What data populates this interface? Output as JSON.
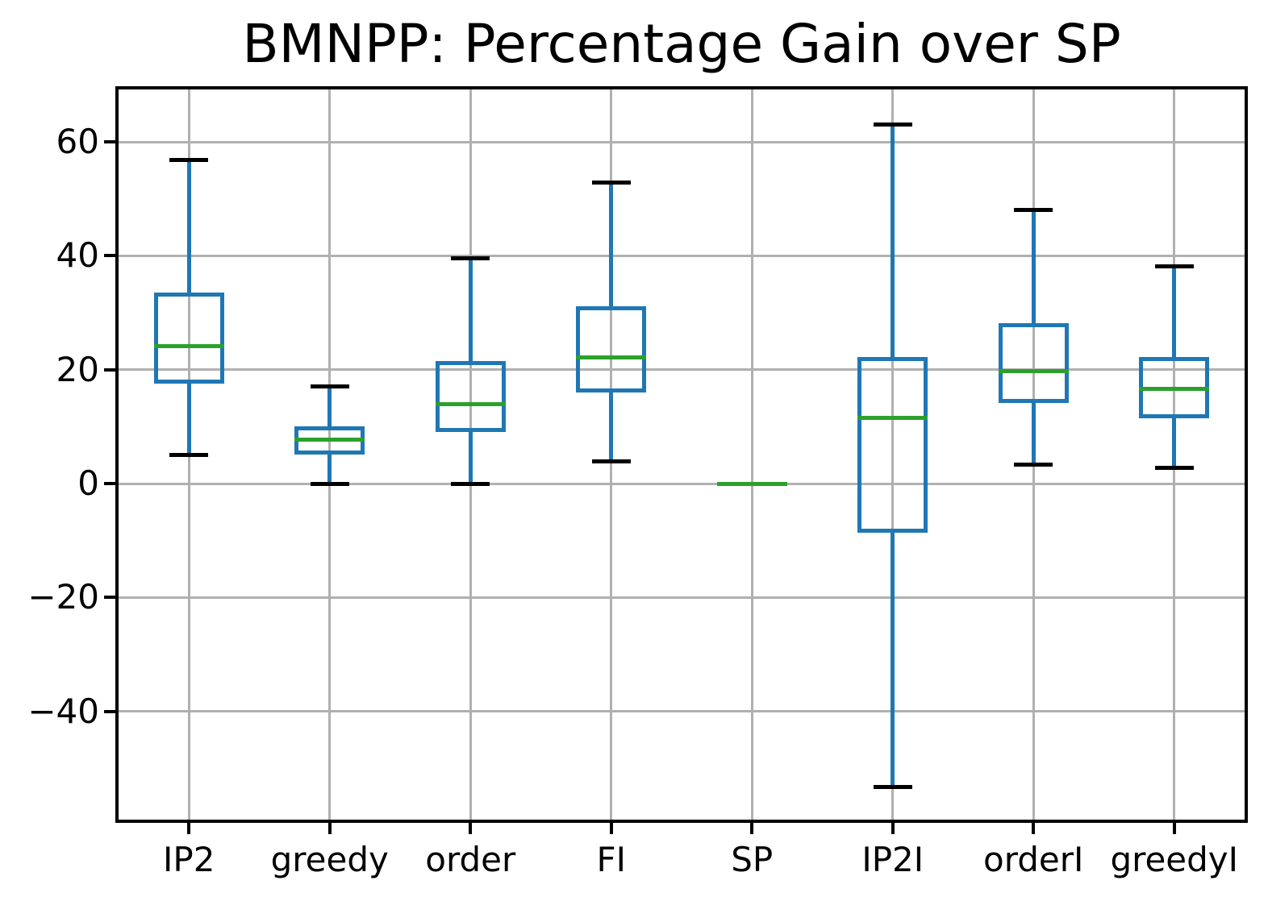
{
  "chart_data": {
    "type": "box",
    "title": "BMNPP: Percentage Gain over SP",
    "categories": [
      "IP2",
      "greedy",
      "order",
      "FI",
      "SP",
      "IP2I",
      "orderI",
      "greedyI"
    ],
    "series": [
      {
        "name": "IP2",
        "whislo": 5.0,
        "q1": 17.5,
        "med": 24.2,
        "q3": 33.5,
        "whishi": 56.8
      },
      {
        "name": "greedy",
        "whislo": 0.0,
        "q1": 5.1,
        "med": 7.7,
        "q3": 10.0,
        "whishi": 17.0
      },
      {
        "name": "order",
        "whislo": 0.0,
        "q1": 9.0,
        "med": 14.0,
        "q3": 21.5,
        "whishi": 39.5
      },
      {
        "name": "FI",
        "whislo": 3.9,
        "q1": 16.0,
        "med": 22.2,
        "q3": 31.1,
        "whishi": 52.8
      },
      {
        "name": "SP",
        "whislo": 0.0,
        "q1": 0.0,
        "med": 0.0,
        "q3": 0.0,
        "whishi": 0.0
      },
      {
        "name": "IP2I",
        "whislo": -53.3,
        "q1": -8.6,
        "med": 11.5,
        "q3": 22.2,
        "whishi": 63.0
      },
      {
        "name": "orderI",
        "whislo": 3.3,
        "q1": 14.2,
        "med": 19.8,
        "q3": 28.2,
        "whishi": 48.1
      },
      {
        "name": "greedyI",
        "whislo": 2.8,
        "q1": 11.5,
        "med": 16.7,
        "q3": 22.2,
        "whishi": 38.2
      }
    ],
    "xlabel": "",
    "ylabel": "",
    "ylim": [
      -59,
      69.2
    ],
    "yticks": [
      {
        "value": -40,
        "label": "−40"
      },
      {
        "value": -20,
        "label": "−20"
      },
      {
        "value": 0,
        "label": "0"
      },
      {
        "value": 20,
        "label": "20"
      },
      {
        "value": 40,
        "label": "40"
      },
      {
        "value": 60,
        "label": "60"
      }
    ],
    "grid": true,
    "legend": "none",
    "colors": {
      "box": "#1f77b4",
      "whisker": "#1f77b4",
      "median": "#2ca02c",
      "cap": "#000000",
      "grid": "#b0b0b0",
      "spine": "#000000",
      "background": "#ffffff"
    }
  }
}
